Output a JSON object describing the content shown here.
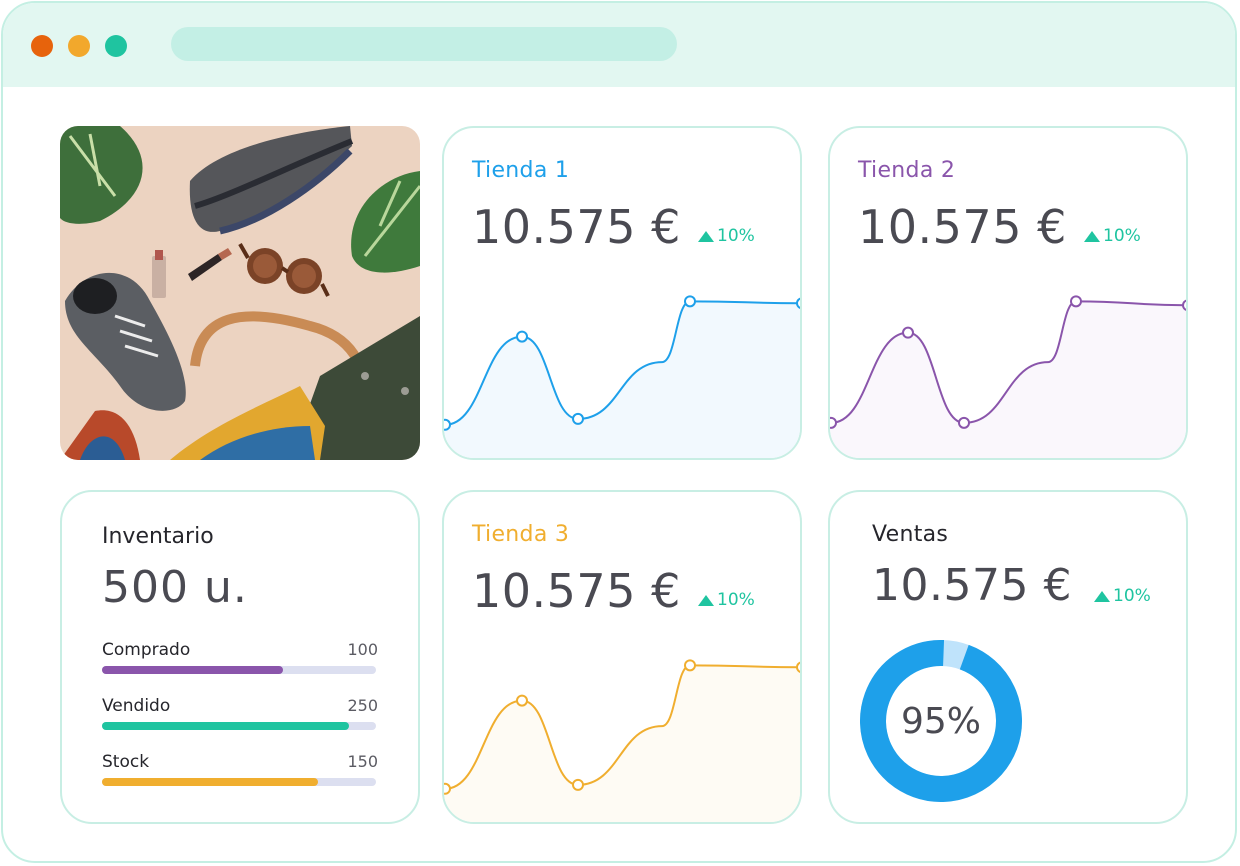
{
  "window": {
    "colors": {
      "close": "#e7630c",
      "minimize": "#f2a82c",
      "maximize": "#1fc4a0",
      "address_bar": "#c3efe5"
    }
  },
  "cards": {
    "store1": {
      "title": "Tienda 1",
      "value": "10.575 €",
      "trend": "10%",
      "trend_icon": "triangle-up-icon",
      "color": "#1ea0ea",
      "fill": "#f2f9fe"
    },
    "store2": {
      "title": "Tienda 2",
      "value": "10.575 €",
      "trend": "10%",
      "trend_icon": "triangle-up-icon",
      "color": "#8a55ab",
      "fill": "#faf7fc"
    },
    "store3": {
      "title": "Tienda 3",
      "value": "10.575 €",
      "trend": "10%",
      "trend_icon": "triangle-up-icon",
      "color": "#f0ae2f",
      "fill": "#fefbf4"
    },
    "inventory": {
      "title": "Inventario",
      "value": "500 u.",
      "total": 500,
      "rows": [
        {
          "label": "Comprado",
          "value": "100",
          "fill_fraction": 0.66,
          "color": "#8a55ab"
        },
        {
          "label": "Vendido",
          "value": "250",
          "fill_fraction": 0.9,
          "color": "#1fc4a0"
        },
        {
          "label": "Stock",
          "value": "150",
          "fill_fraction": 0.79,
          "color": "#f0ae2f"
        }
      ]
    },
    "sales": {
      "title": "Ventas",
      "value": "10.575 €",
      "trend": "10%",
      "trend_icon": "triangle-up-icon",
      "percent": "95%",
      "progress": 0.95,
      "color": "#1ea0ea",
      "track_color": "#bfe3fb"
    }
  },
  "chart_data": [
    {
      "type": "line",
      "series": [
        {
          "values": [
            2,
            6.5,
            2.3,
            5.2,
            8.3,
            8.2
          ]
        }
      ]
    },
    {
      "type": "line",
      "series": [
        {
          "values": [
            2.1,
            6.7,
            2.1,
            5.2,
            8.3,
            8.1
          ]
        }
      ]
    },
    {
      "type": "line",
      "series": [
        {
          "values": [
            2,
            6.5,
            2.2,
            5.2,
            8.3,
            8.2
          ]
        }
      ]
    }
  ]
}
